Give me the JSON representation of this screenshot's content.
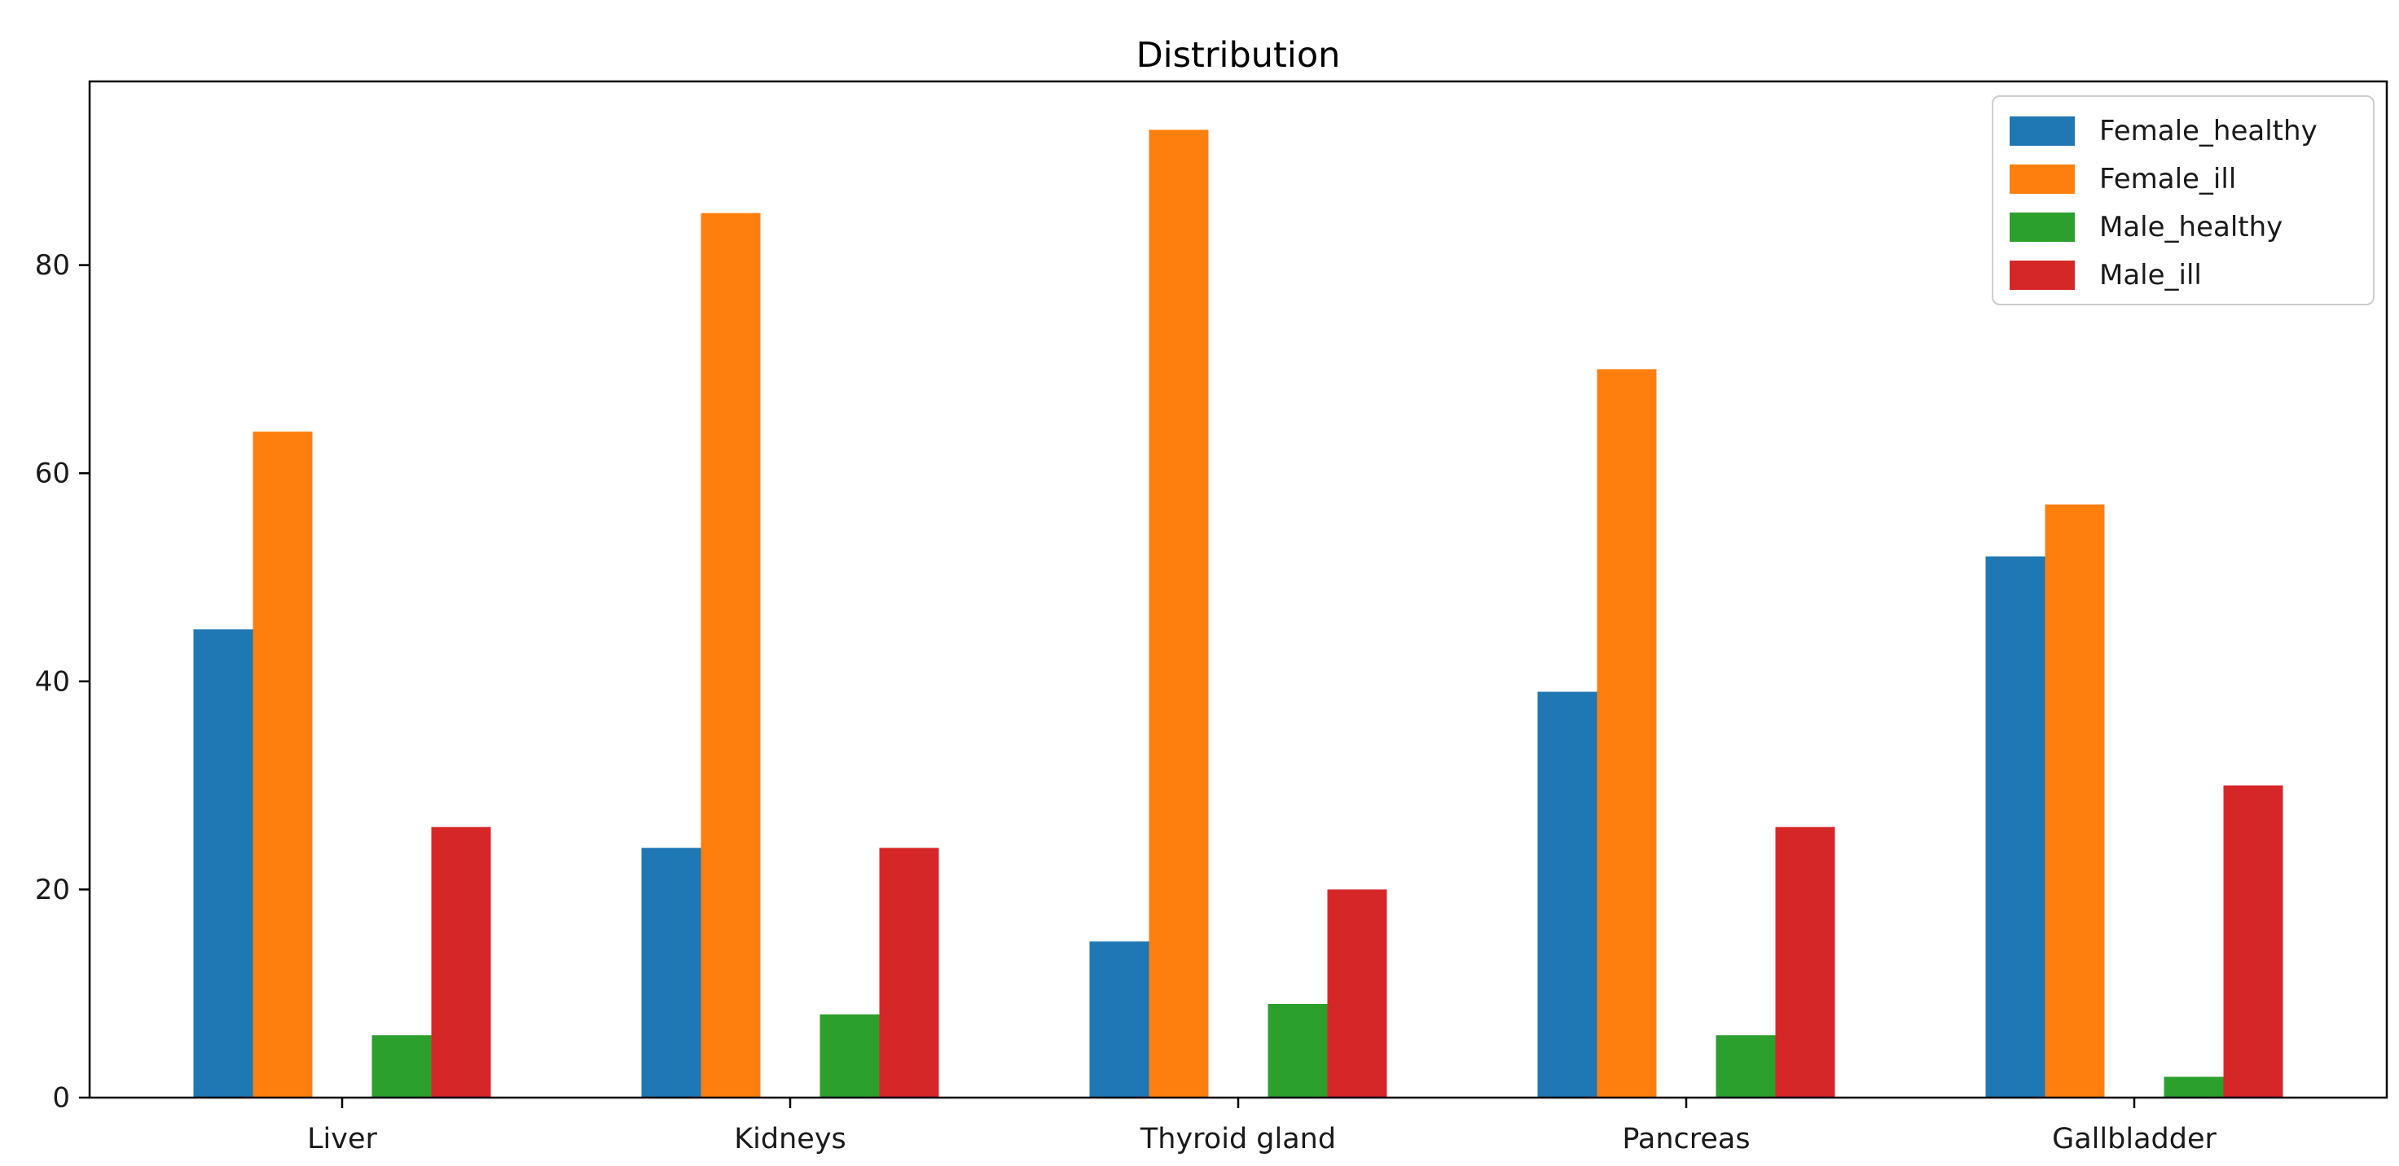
{
  "figure": {
    "title": "Distribution",
    "background": "#ffffff",
    "axis_color": "#000000",
    "text_color": "#1a1a1a",
    "legend_border_color": "#cccccc"
  },
  "chart_data": {
    "type": "bar",
    "title": "Distribution",
    "xlabel": "",
    "ylabel": "",
    "categories": [
      "Liver",
      "Kidneys",
      "Thyroid gland",
      "Pancreas",
      "Gallbladder"
    ],
    "series": [
      {
        "name": "Female_healthy",
        "color": "#1f77b4",
        "values": [
          45,
          24,
          15,
          39,
          52
        ]
      },
      {
        "name": "Female_ill",
        "color": "#ff7f0e",
        "values": [
          64,
          85,
          93,
          70,
          57
        ]
      },
      {
        "name": "Male_healthy",
        "color": "#2ca02c",
        "values": [
          6,
          8,
          9,
          6,
          2
        ]
      },
      {
        "name": "Male_ill",
        "color": "#d62728",
        "values": [
          26,
          24,
          20,
          26,
          30
        ]
      }
    ],
    "yticks": [
      0,
      20,
      40,
      60,
      80
    ],
    "ylim": [
      0,
      97.65
    ],
    "grid": false,
    "legend_position": "upper right"
  }
}
